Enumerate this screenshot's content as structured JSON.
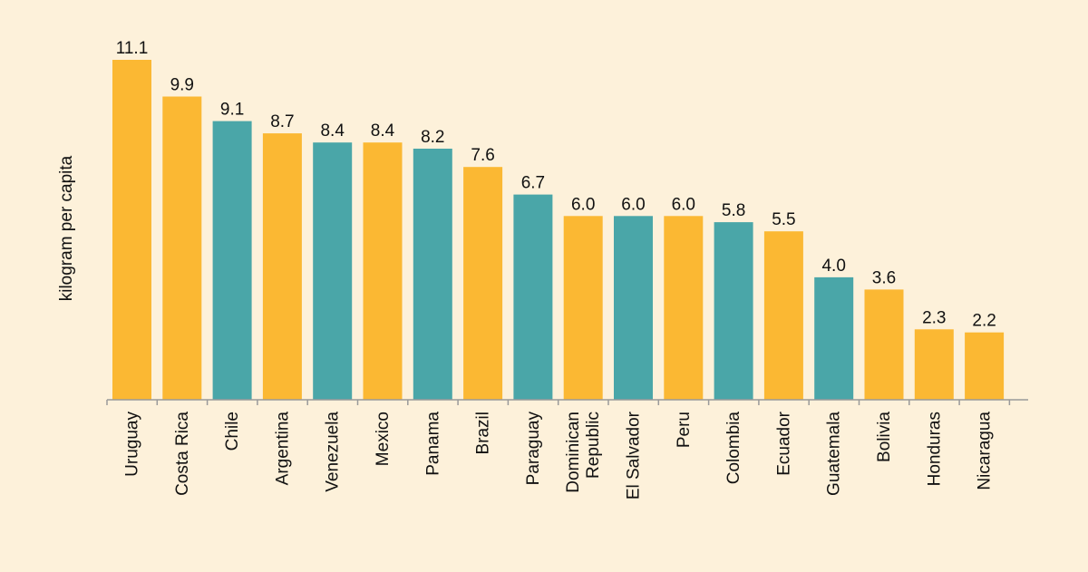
{
  "chart_data": {
    "type": "bar",
    "title": "",
    "xlabel": "",
    "ylabel": "kilogram per capita",
    "ylim": [
      0,
      11.1
    ],
    "grid": false,
    "legend": "none",
    "colors": {
      "orange": "#fbb833",
      "teal": "#4aa6a8",
      "background": "#fdf1da",
      "axis": "#9a9a9a",
      "text": "#111111"
    },
    "categories": [
      [
        "Uruguay"
      ],
      [
        "Costa Rica"
      ],
      [
        "Chile"
      ],
      [
        "Argentina"
      ],
      [
        "Venezuela"
      ],
      [
        "Mexico"
      ],
      [
        "Panama"
      ],
      [
        "Brazil"
      ],
      [
        "Paraguay"
      ],
      [
        "Dominican",
        "Republic"
      ],
      [
        "El Salvador"
      ],
      [
        "Peru"
      ],
      [
        "Colombia"
      ],
      [
        "Ecuador"
      ],
      [
        "Guatemala"
      ],
      [
        "Bolivia"
      ],
      [
        "Honduras"
      ],
      [
        "Nicaragua"
      ]
    ],
    "values": [
      11.1,
      9.9,
      9.1,
      8.7,
      8.4,
      8.4,
      8.2,
      7.6,
      6.7,
      6.0,
      6.0,
      6.0,
      5.8,
      5.5,
      4.0,
      3.6,
      2.3,
      2.2
    ],
    "value_labels": [
      "11.1",
      "9.9",
      "9.1",
      "8.7",
      "8.4",
      "8.4",
      "8.2",
      "7.6",
      "6.7",
      "6.0",
      "6.0",
      "6.0",
      "5.8",
      "5.5",
      "4.0",
      "3.6",
      "2.3",
      "2.2"
    ],
    "bar_colors": [
      "orange",
      "orange",
      "teal",
      "orange",
      "teal",
      "orange",
      "teal",
      "orange",
      "teal",
      "orange",
      "teal",
      "orange",
      "teal",
      "orange",
      "teal",
      "orange",
      "orange",
      "orange"
    ]
  }
}
